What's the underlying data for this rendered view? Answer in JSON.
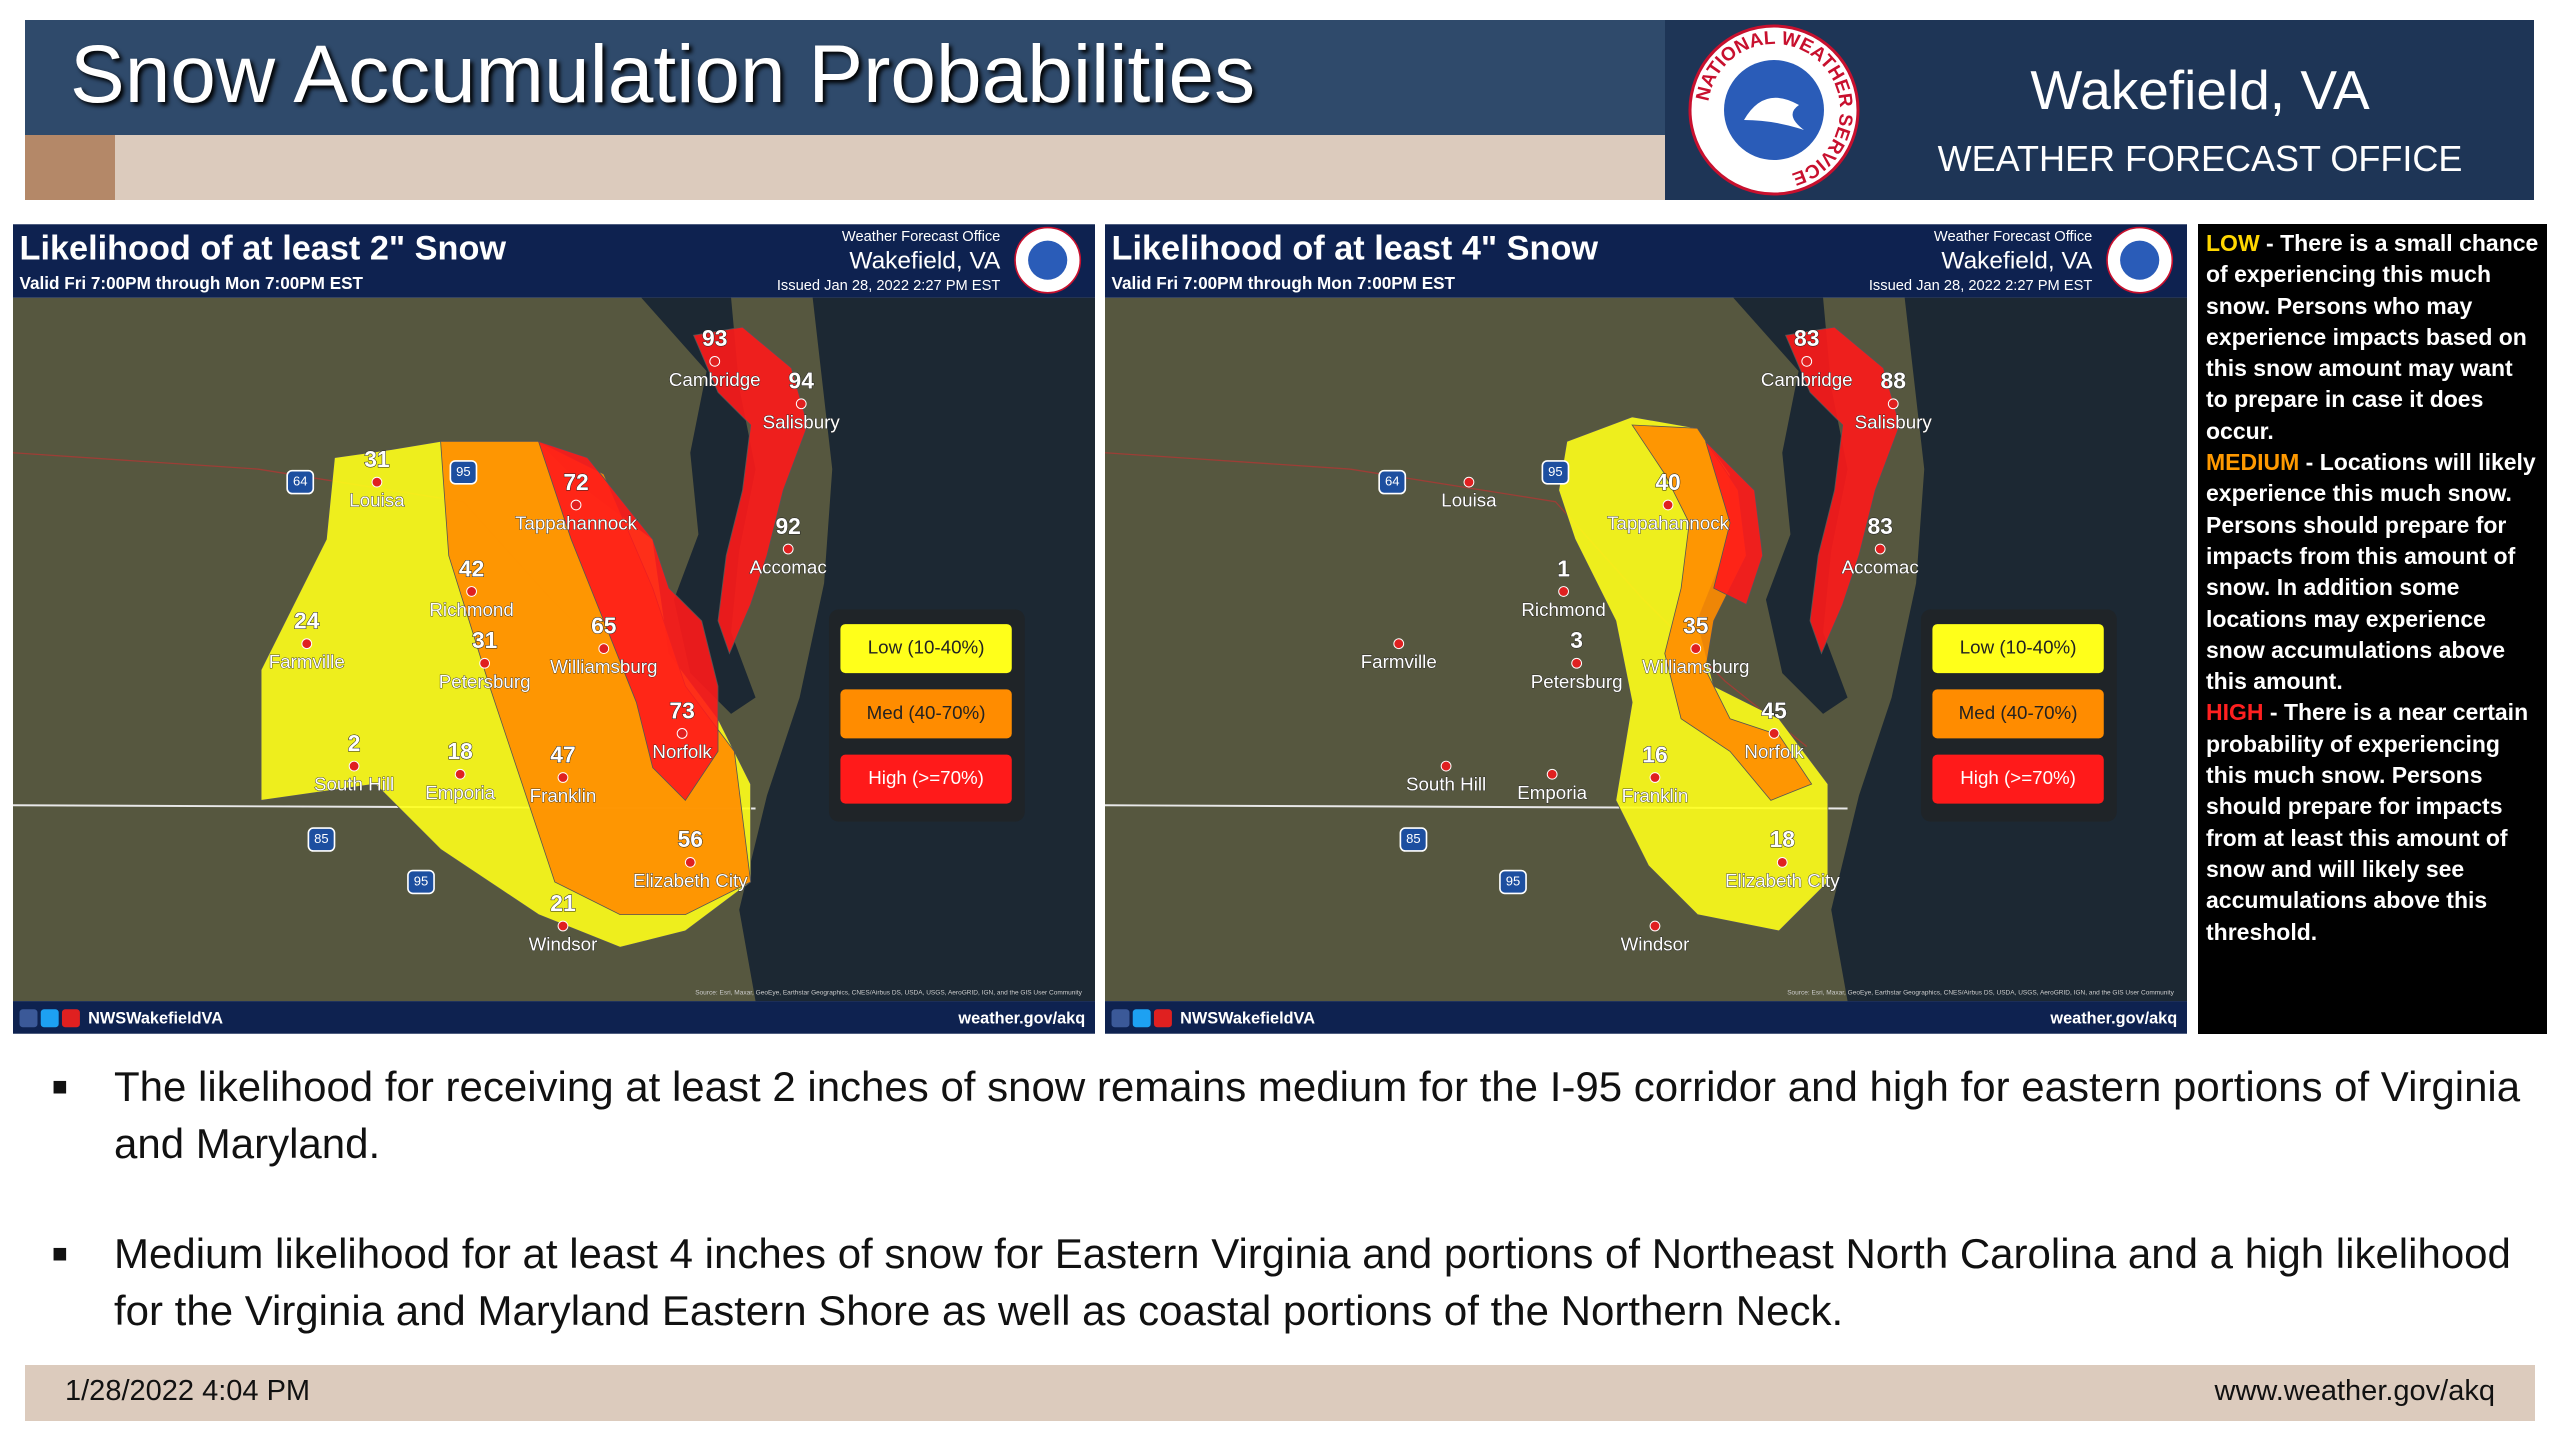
{
  "header": {
    "title": "Snow Accumulation Probabilities",
    "office_name": "Wakefield, VA",
    "office_subtitle": "WEATHER FORECAST OFFICE",
    "logo_text": "NATIONAL WEATHER SERVICE"
  },
  "maps": [
    {
      "title": "Likelihood of at least 2\" Snow",
      "valid": "Valid Fri 7:00PM through Mon 7:00PM EST",
      "office_label": "Weather Forecast Office",
      "office_name": "Wakefield, VA",
      "issued": "Issued Jan 28, 2022 2:27 PM EST",
      "legend": [
        "Low (10-40%)",
        "Med (40-70%)",
        "High (>=70%)"
      ],
      "places": [
        {
          "name": "Cambridge",
          "value": 93
        },
        {
          "name": "Salisbury",
          "value": 94
        },
        {
          "name": "Louisa",
          "value": 31
        },
        {
          "name": "Tappahannock",
          "value": 72
        },
        {
          "name": "Accomac",
          "value": 92
        },
        {
          "name": "Richmond",
          "value": 42
        },
        {
          "name": "Farmville",
          "value": 24
        },
        {
          "name": "Williamsburg",
          "value": 65
        },
        {
          "name": "Petersburg",
          "value": 31
        },
        {
          "name": "Norfolk",
          "value": 73
        },
        {
          "name": "South Hill",
          "value": 2
        },
        {
          "name": "Emporia",
          "value": 18
        },
        {
          "name": "Franklin",
          "value": 47
        },
        {
          "name": "Elizabeth City",
          "value": 56
        },
        {
          "name": "Windsor",
          "value": 21
        }
      ],
      "highways": [
        "64",
        "95",
        "85",
        "95"
      ],
      "social": "NWSWakefieldVA",
      "source": "Source: Esri, Maxar, GeoEye, Earthstar Geographics, CNES/Airbus DS, USDA, USGS, AeroGRID, IGN, and the GIS User Community",
      "url": "weather.gov/akq"
    },
    {
      "title": "Likelihood of at least 4\" Snow",
      "valid": "Valid Fri 7:00PM through Mon 7:00PM EST",
      "office_label": "Weather Forecast Office",
      "office_name": "Wakefield, VA",
      "issued": "Issued Jan 28, 2022 2:27 PM EST",
      "legend": [
        "Low (10-40%)",
        "Med (40-70%)",
        "High (>=70%)"
      ],
      "places": [
        {
          "name": "Cambridge",
          "value": 83
        },
        {
          "name": "Salisbury",
          "value": 88
        },
        {
          "name": "Louisa"
        },
        {
          "name": "Tappahannock",
          "value": 40
        },
        {
          "name": "Accomac",
          "value": 83
        },
        {
          "name": "Richmond",
          "value": 1
        },
        {
          "name": "Farmville"
        },
        {
          "name": "Williamsburg",
          "value": 35
        },
        {
          "name": "Petersburg",
          "value": 3
        },
        {
          "name": "Norfolk",
          "value": 45
        },
        {
          "name": "South Hill"
        },
        {
          "name": "Emporia"
        },
        {
          "name": "Franklin",
          "value": 16
        },
        {
          "name": "Elizabeth City",
          "value": 18
        },
        {
          "name": "Windsor"
        }
      ],
      "highways": [
        "64",
        "95",
        "85",
        "95"
      ],
      "social": "NWSWakefieldVA",
      "source": "Source: Esri, Maxar, GeoEye, Earthstar Geographics, CNES/Airbus DS, USDA, USGS, AeroGRID, IGN, and the GIS User Community",
      "url": "weather.gov/akq"
    }
  ],
  "notes": [
    {
      "level": "LOW",
      "text": "- There is a small chance of experiencing this much snow. Persons who may experience impacts based on this snow amount may want to prepare in case it does occur."
    },
    {
      "level": "MEDIUM",
      "text": "- Locations will likely experience this much snow. Persons should prepare for impacts from this amount of snow. In addition some locations may experience snow accumulations above this amount."
    },
    {
      "level": "HIGH",
      "text": "- There is a near certain probability of experiencing this much snow. Persons should prepare for impacts from at least this amount of snow and will likely see accumulations above this threshold."
    }
  ],
  "bullets": [
    "The likelihood for receiving at least 2 inches of snow remains medium for the I-95 corridor and high for eastern portions of Virginia and Maryland.",
    "Medium likelihood for at least 4 inches of snow for Eastern Virginia and portions of Northeast North Carolina and a high likelihood for the Virginia and Maryland Eastern Shore as well as coastal portions of the Northern Neck."
  ],
  "footer": {
    "date": "1/28/2022 4:04 PM",
    "url": "www.weather.gov/akq"
  }
}
